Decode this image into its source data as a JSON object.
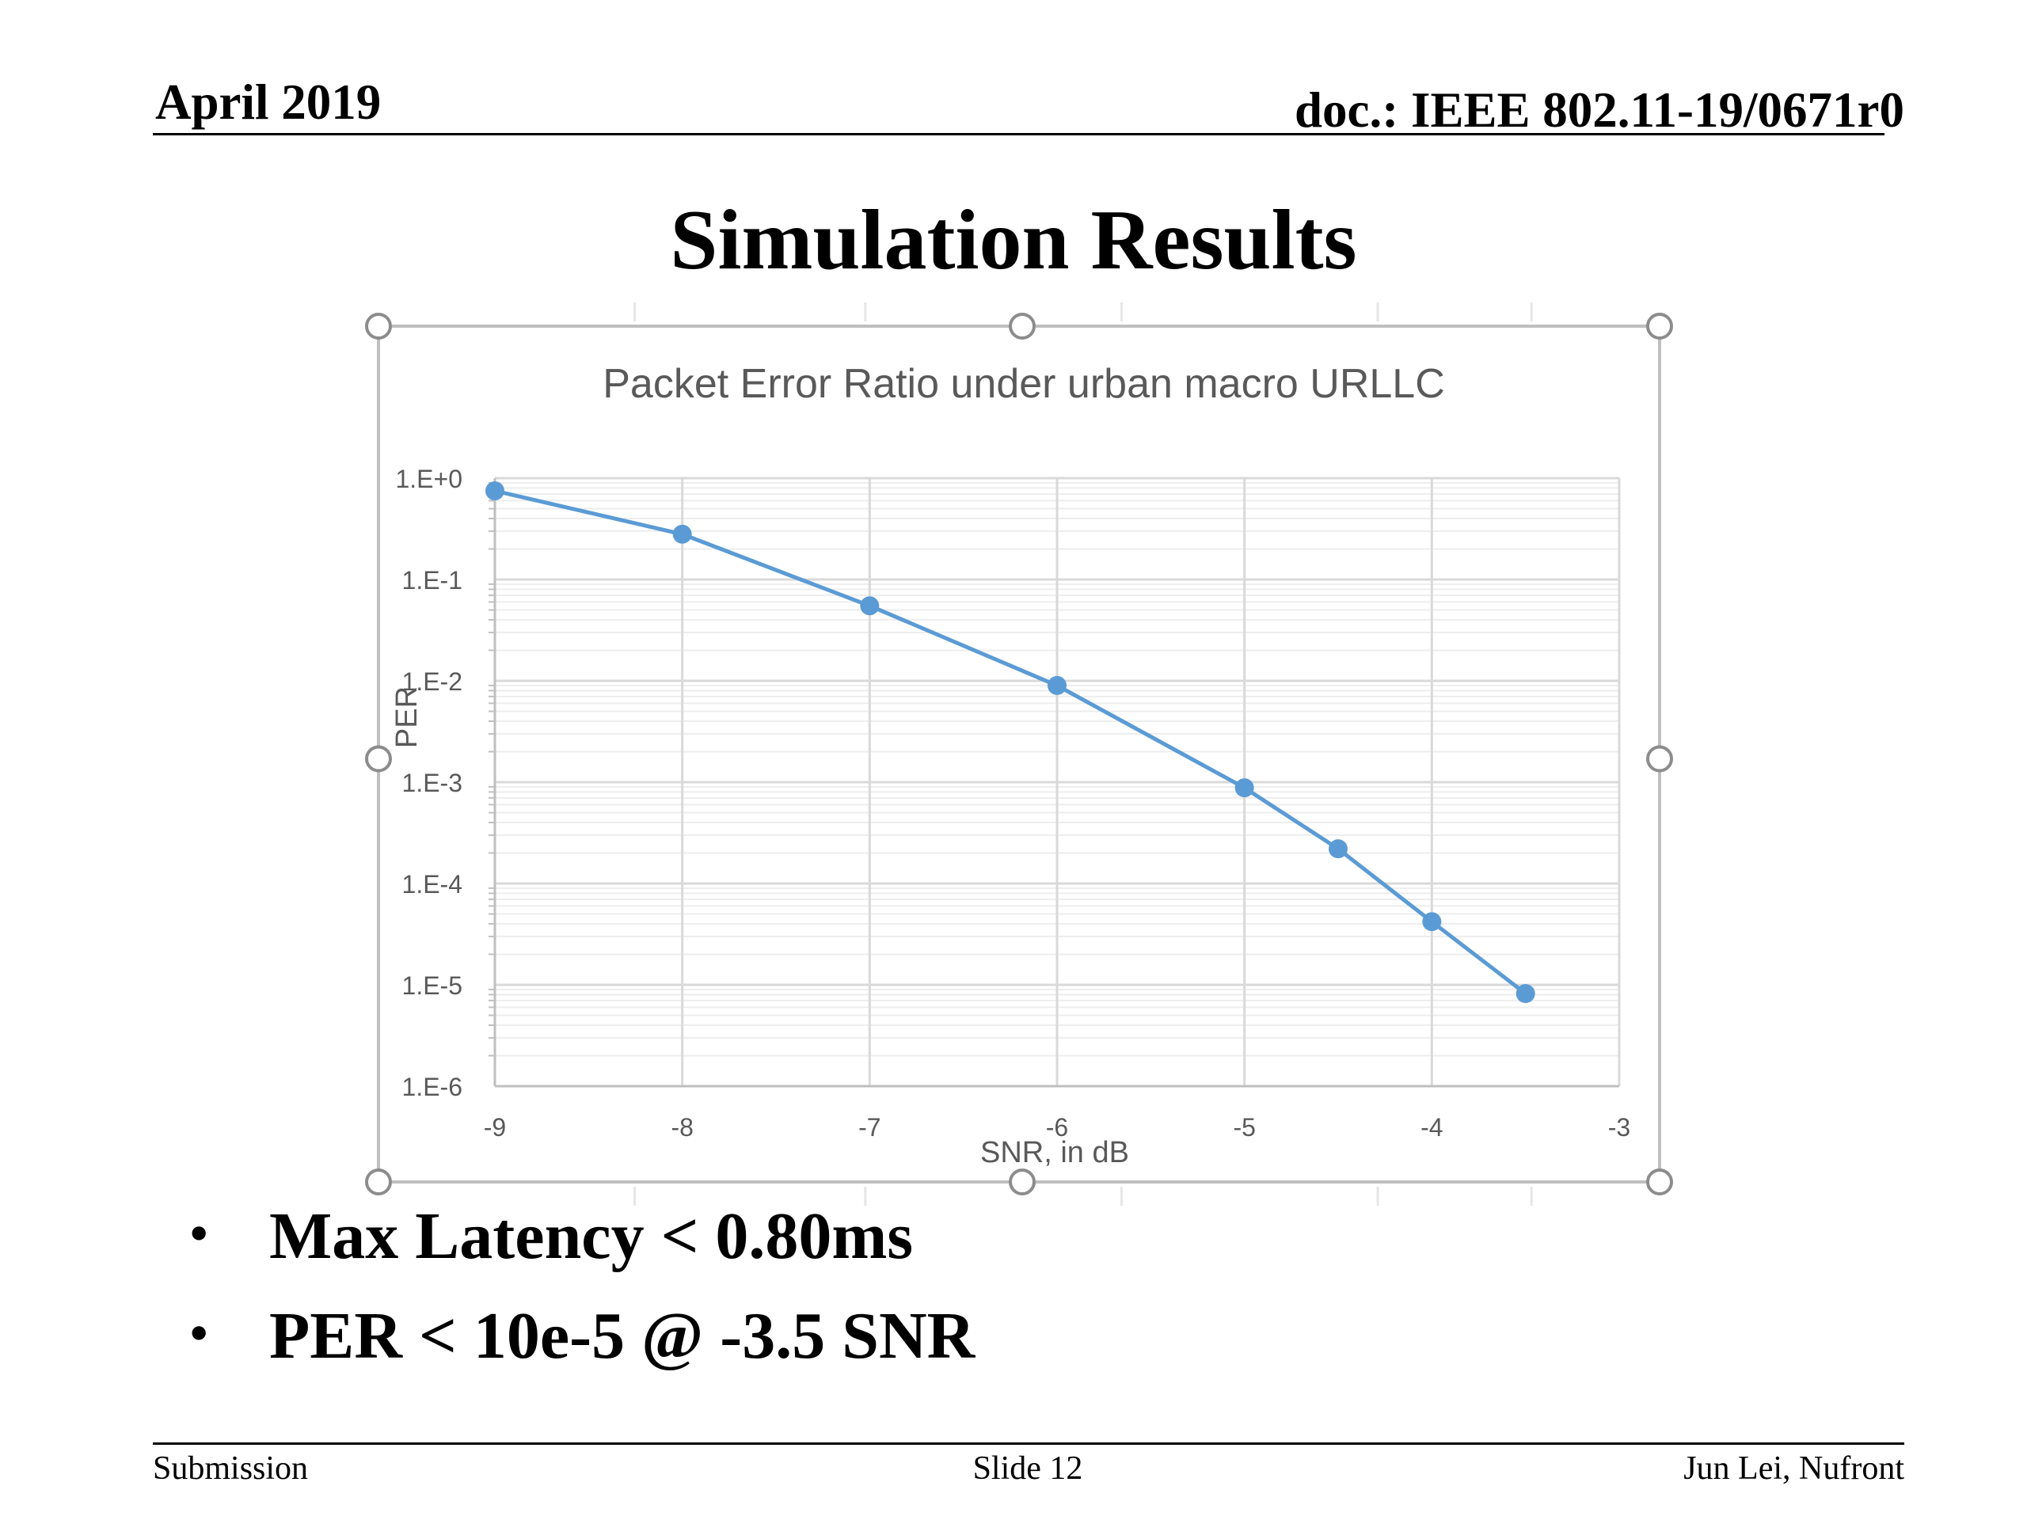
{
  "header": {
    "date": "April 2019",
    "doc": "doc.: IEEE 802.11-19/0671r0"
  },
  "slide_title": "Simulation Results",
  "chart_data": {
    "type": "line",
    "title": "Packet Error Ratio under urban macro URLLC",
    "xlabel": "SNR, in dB",
    "ylabel": "PER",
    "y_scale": "log",
    "xlim": [
      -9,
      -3
    ],
    "ylim": [
      1e-06,
      1
    ],
    "grid": true,
    "legend": false,
    "x_ticks": [
      "-9",
      "-8",
      "-7",
      "-6",
      "-5",
      "-4",
      "-3"
    ],
    "y_ticks": [
      "1.E+0",
      "1.E-1",
      "1.E-2",
      "1.E-3",
      "1.E-4",
      "1.E-5",
      "1.E-6"
    ],
    "line_color": "#5b9bd5",
    "x": [
      -9,
      -8,
      -7,
      -6,
      -5,
      -4.5,
      -4,
      -3.5
    ],
    "y": [
      0.75,
      0.28,
      0.055,
      0.009,
      0.00088,
      0.00022,
      4.2e-05,
      8.2e-06
    ]
  },
  "bullets": [
    "Max Latency < 0.80ms",
    "PER < 10e-5 @  -3.5 SNR"
  ],
  "footer": {
    "left": "Submission",
    "center": "Slide 12",
    "right": "Jun Lei, Nufront"
  }
}
